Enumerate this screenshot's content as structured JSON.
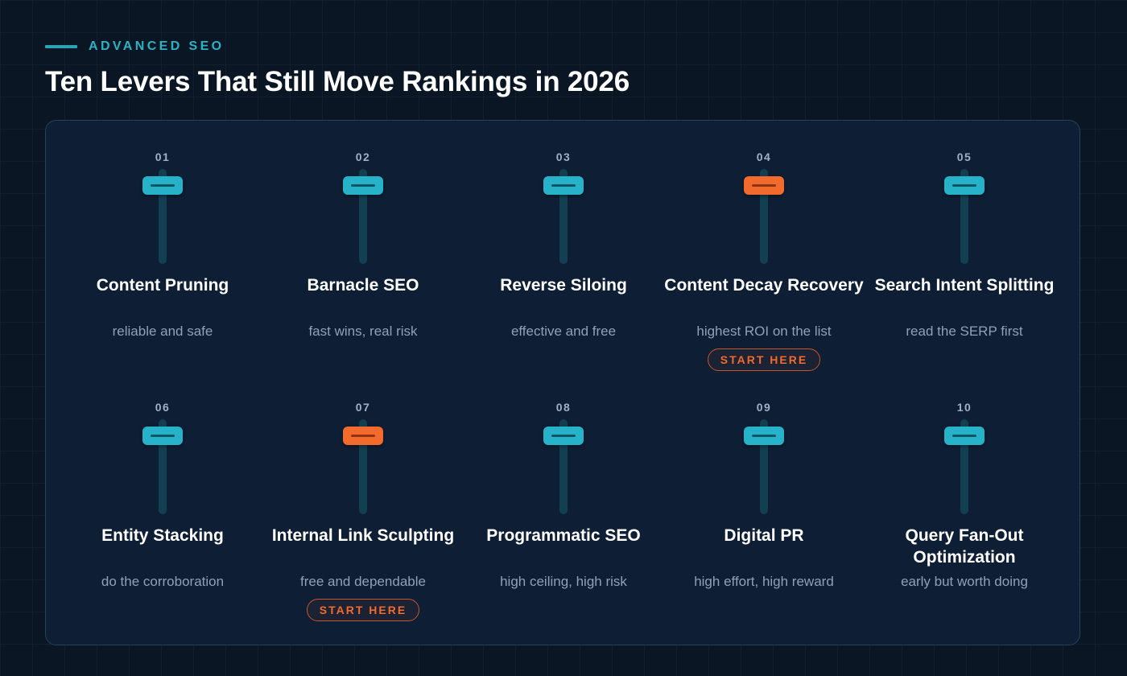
{
  "header": {
    "eyebrow": "ADVANCED SEO",
    "title": "Ten Levers That Still Move Rankings in 2026"
  },
  "colors": {
    "primary_knob": "#26b3c9",
    "accent_knob": "#f26a2c",
    "background": "#0b1624",
    "panel": "#0f1f36"
  },
  "levers": [
    {
      "number": "01",
      "name": "Content Pruning",
      "description": "reliable and safe",
      "highlight": false,
      "badge": ""
    },
    {
      "number": "02",
      "name": "Barnacle SEO",
      "description": "fast wins, real risk",
      "highlight": false,
      "badge": ""
    },
    {
      "number": "03",
      "name": "Reverse Siloing",
      "description": "effective and free",
      "highlight": false,
      "badge": ""
    },
    {
      "number": "04",
      "name": "Content Decay Recovery",
      "description": "highest ROI on the list",
      "highlight": true,
      "badge": "START HERE"
    },
    {
      "number": "05",
      "name": "Search Intent Splitting",
      "description": "read the SERP first",
      "highlight": false,
      "badge": ""
    },
    {
      "number": "06",
      "name": "Entity Stacking",
      "description": "do the corroboration",
      "highlight": false,
      "badge": ""
    },
    {
      "number": "07",
      "name": "Internal Link Sculpting",
      "description": "free and dependable",
      "highlight": true,
      "badge": "START HERE"
    },
    {
      "number": "08",
      "name": "Programmatic SEO",
      "description": "high ceiling, high risk",
      "highlight": false,
      "badge": ""
    },
    {
      "number": "09",
      "name": "Digital PR",
      "description": "high effort, high reward",
      "highlight": false,
      "badge": ""
    },
    {
      "number": "10",
      "name": "Query Fan-Out Optimization",
      "description": "early but worth doing",
      "highlight": false,
      "badge": ""
    }
  ]
}
